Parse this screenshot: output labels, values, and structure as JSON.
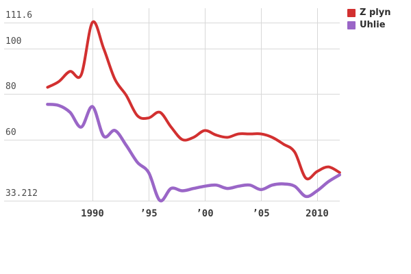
{
  "chart_data": {
    "type": "line",
    "x": [
      1986,
      1987,
      1988,
      1989,
      1990,
      1991,
      1992,
      1993,
      1994,
      1995,
      1996,
      1997,
      1998,
      1999,
      2000,
      2001,
      2002,
      2003,
      2004,
      2005,
      2006,
      2007,
      2008,
      2009,
      2010,
      2011,
      2012
    ],
    "series": [
      {
        "name": "Z plyn",
        "color": "#d23030",
        "values": [
          83,
          85.5,
          90,
          88.5,
          111.6,
          100,
          86.5,
          79.5,
          70.5,
          69.5,
          72,
          65.5,
          60,
          61,
          64,
          62,
          61,
          62.5,
          62.5,
          62.5,
          61,
          58,
          54.5,
          43,
          46,
          48,
          45.5
        ]
      },
      {
        "name": "Uhlie",
        "color": "#9a66c7",
        "values": [
          75.5,
          75,
          72,
          65.5,
          74.5,
          61.5,
          64,
          57.5,
          50,
          45.5,
          33.212,
          38.5,
          37.5,
          38.5,
          39.5,
          40,
          38.5,
          39.5,
          40,
          38,
          40,
          40.5,
          39.5,
          35,
          37.5,
          41.5,
          44.5
        ]
      }
    ],
    "y_axis": {
      "min": 33.212,
      "max": 111.6,
      "ticks": [
        {
          "value": 111.6,
          "label": "111.6"
        },
        {
          "value": 100,
          "label": "100"
        },
        {
          "value": 80,
          "label": "80"
        },
        {
          "value": 60,
          "label": "60"
        },
        {
          "value": 33.212,
          "label": "33.212"
        }
      ]
    },
    "x_axis": {
      "ticks": [
        {
          "value": 1990,
          "label": "1990"
        },
        {
          "value": 1995,
          "label": "’95"
        },
        {
          "value": 2000,
          "label": "’00"
        },
        {
          "value": 2005,
          "label": "’05"
        },
        {
          "value": 2010,
          "label": "2010"
        }
      ]
    },
    "grid": true,
    "legend_position": "top-right",
    "title": "",
    "xlabel": "",
    "ylabel": ""
  },
  "colors": {
    "background": "#ffffff",
    "gridline": "#d8d8d8",
    "y_tick_text": "#4a4a4a",
    "x_tick_text": "#3a3a3a",
    "legend_text": "#2d2d2d"
  }
}
